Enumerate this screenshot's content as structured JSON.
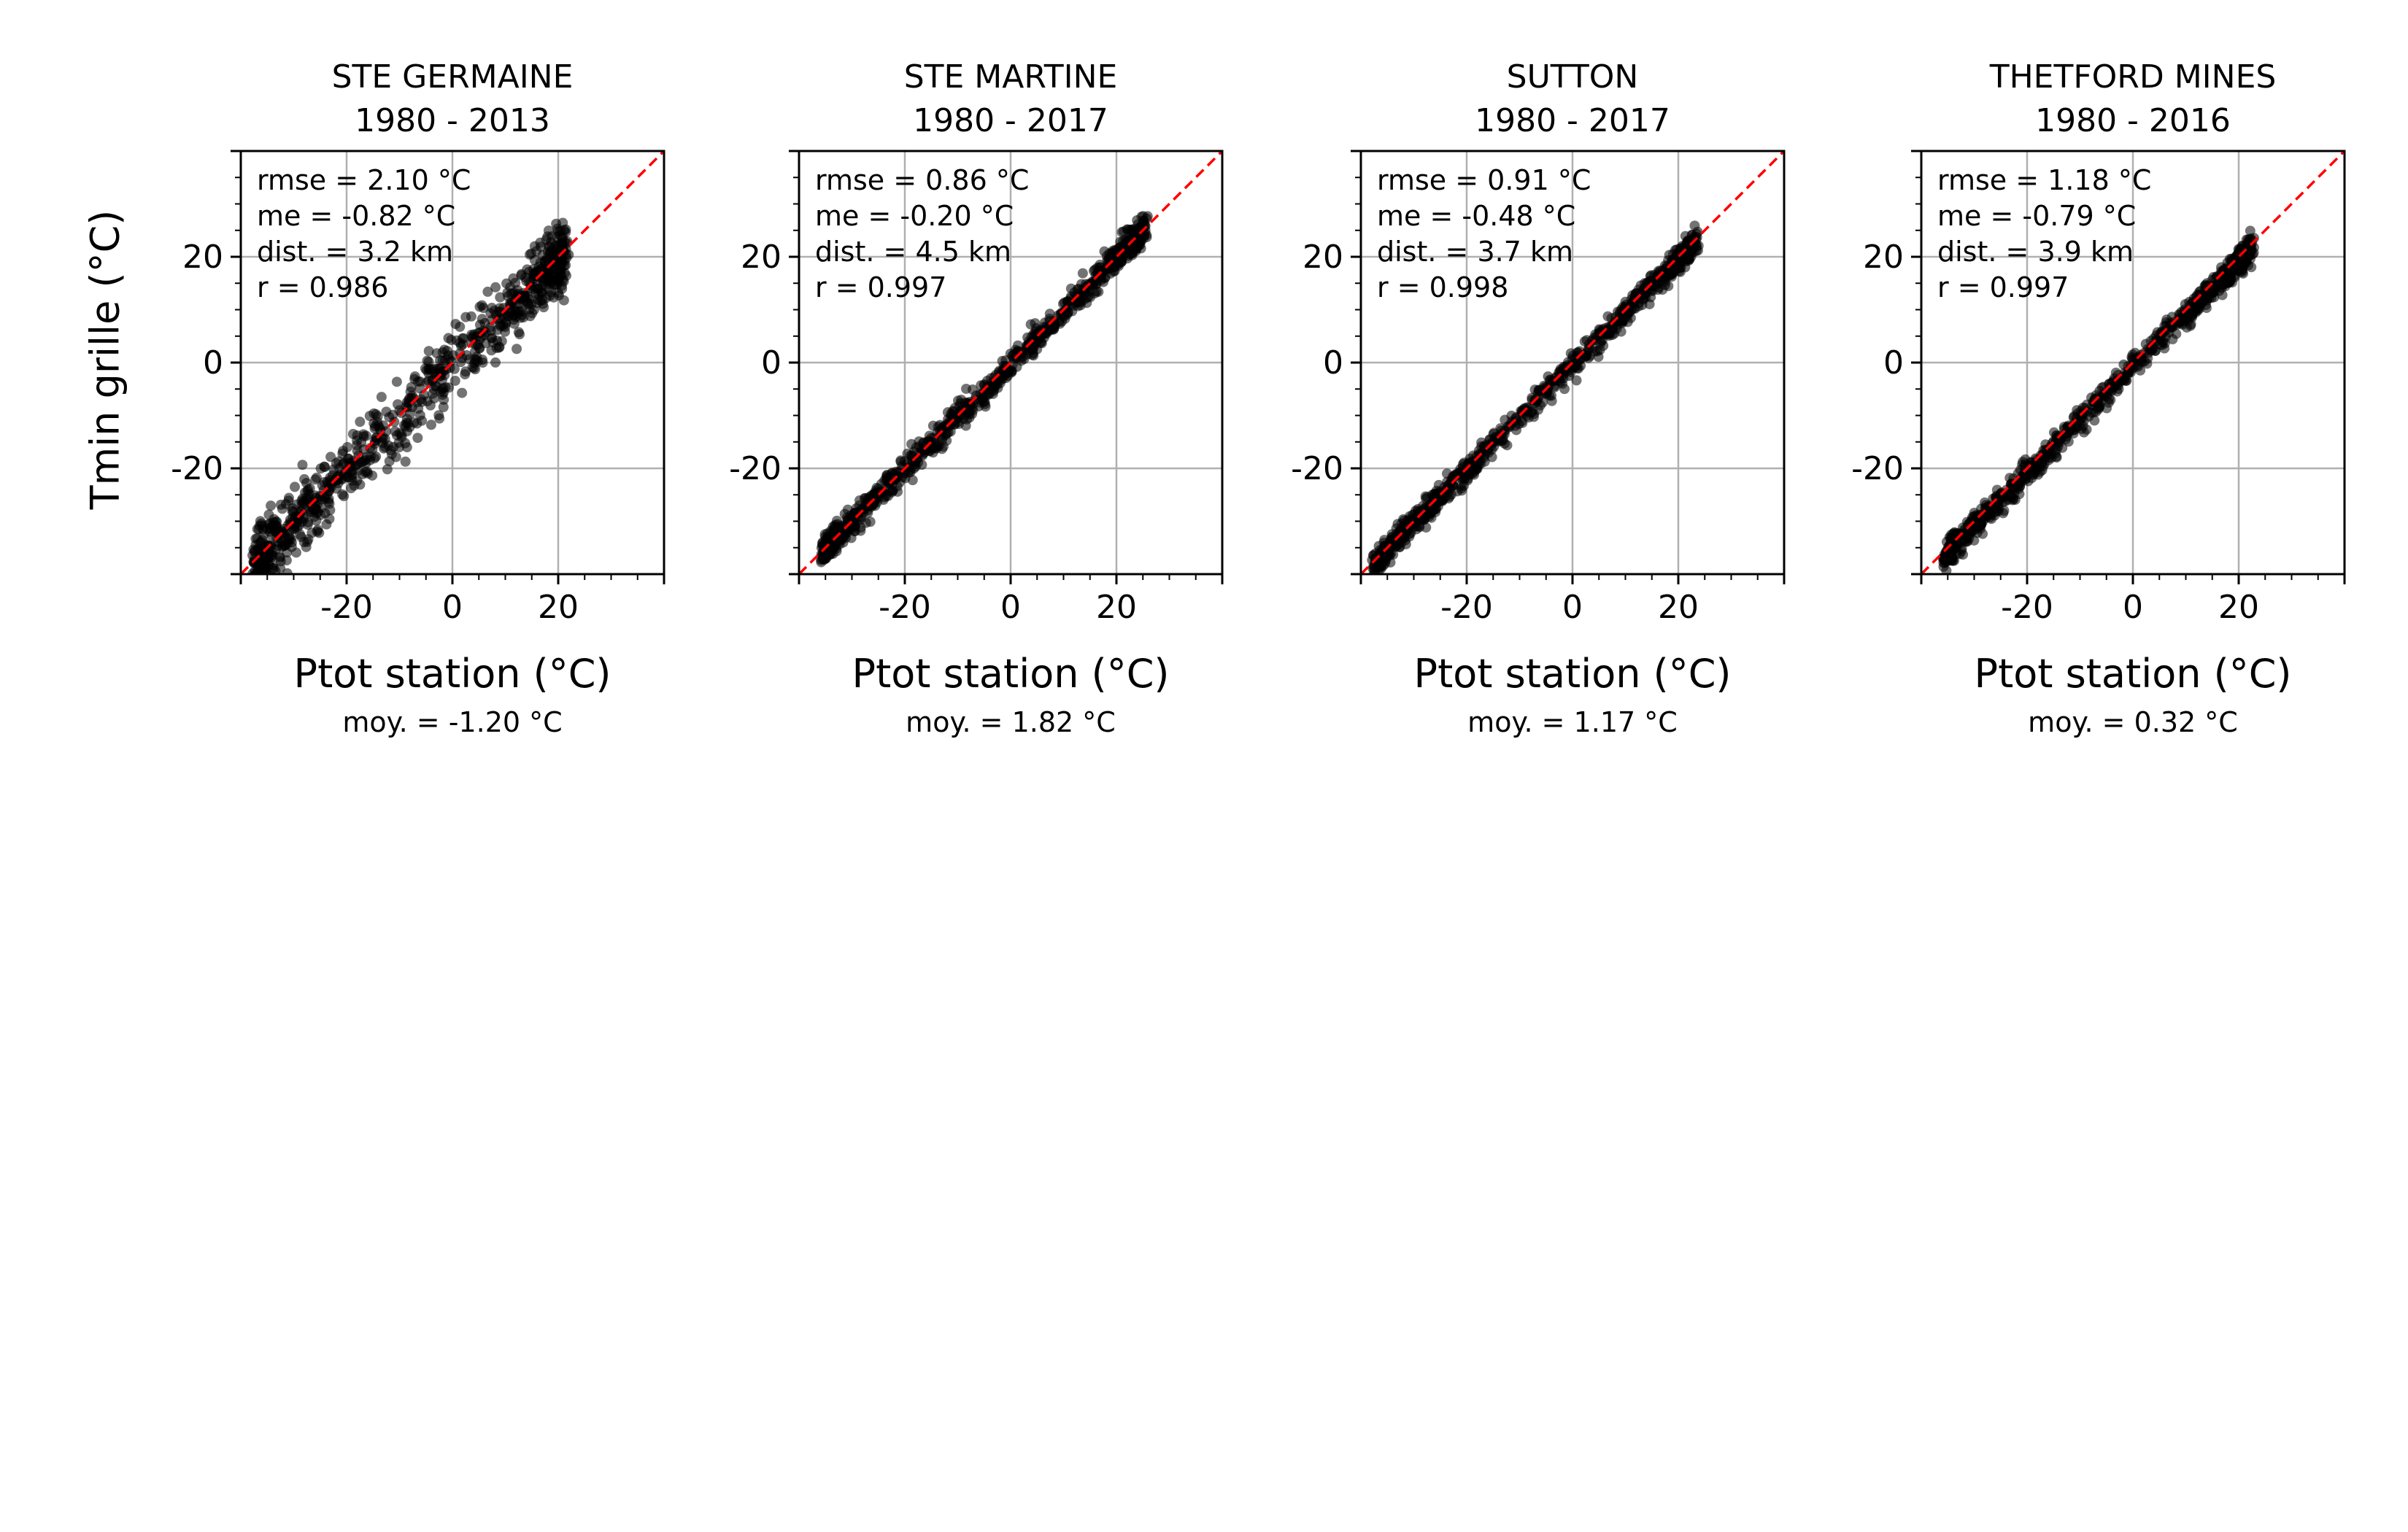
{
  "figure": {
    "ylabel": "Tmin grille (°C)"
  },
  "style": {
    "point_color": "#000000",
    "point_opacity": 0.55,
    "identity_line_color": "#ff0000",
    "grid_color": "#b0b0b0"
  },
  "chart_data": [
    {
      "type": "scatter",
      "title": "STE GERMAINE",
      "subtitle": "1980 - 2013",
      "xlabel": "Ptot station (°C)",
      "xlabel_note": "moy. = -1.20 °C",
      "stats": [
        "rmse = 2.10 °C",
        "me = -0.82 °C",
        "dist. = 3.2 km",
        "r = 0.986"
      ],
      "xlim": [
        -40,
        40
      ],
      "ylim": [
        -40,
        40
      ],
      "xticks": [
        -20,
        0,
        20
      ],
      "yticks": [
        -20,
        0,
        20
      ],
      "xtick_labels": [
        "-20",
        "0",
        "20"
      ],
      "ytick_labels": [
        "-20",
        "0",
        "20"
      ],
      "grid": true,
      "reference_line": "y = x",
      "points": {
        "x_range": [
          -38,
          22
        ],
        "spread": 3.2,
        "bias": -0.82,
        "count": 850,
        "seed": 11
      }
    },
    {
      "type": "scatter",
      "title": "STE MARTINE",
      "subtitle": "1980 - 2017",
      "xlabel": "Ptot station (°C)",
      "xlabel_note": "moy. = 1.82 °C",
      "stats": [
        "rmse = 0.86 °C",
        "me = -0.20 °C",
        "dist. = 4.5 km",
        "r = 0.997"
      ],
      "xlim": [
        -40,
        40
      ],
      "ylim": [
        -40,
        40
      ],
      "xticks": [
        -20,
        0,
        20
      ],
      "yticks": [
        -20,
        0,
        20
      ],
      "xtick_labels": [
        "-20",
        "0",
        "20"
      ],
      "ytick_labels": [
        "-20",
        "0",
        "20"
      ],
      "grid": true,
      "reference_line": "y = x",
      "points": {
        "x_range": [
          -36,
          26
        ],
        "spread": 1.4,
        "bias": -0.2,
        "count": 850,
        "seed": 23
      }
    },
    {
      "type": "scatter",
      "title": "SUTTON",
      "subtitle": "1980 - 2017",
      "xlabel": "Ptot station (°C)",
      "xlabel_note": "moy. = 1.17 °C",
      "stats": [
        "rmse = 0.91 °C",
        "me = -0.48 °C",
        "dist. = 3.7 km",
        "r = 0.998"
      ],
      "xlim": [
        -40,
        40
      ],
      "ylim": [
        -40,
        40
      ],
      "xticks": [
        -20,
        0,
        20
      ],
      "yticks": [
        -20,
        0,
        20
      ],
      "xtick_labels": [
        "-20",
        "0",
        "20"
      ],
      "ytick_labels": [
        "-20",
        "0",
        "20"
      ],
      "grid": true,
      "reference_line": "y = x",
      "points": {
        "x_range": [
          -38,
          24
        ],
        "spread": 1.2,
        "bias": -0.48,
        "count": 850,
        "seed": 37
      }
    },
    {
      "type": "scatter",
      "title": "THETFORD MINES",
      "subtitle": "1980 - 2016",
      "xlabel": "Ptot station (°C)",
      "xlabel_note": "moy. = 0.32 °C",
      "stats": [
        "rmse = 1.18 °C",
        "me = -0.79 °C",
        "dist. = 3.9 km",
        "r = 0.997"
      ],
      "xlim": [
        -40,
        40
      ],
      "ylim": [
        -40,
        40
      ],
      "xticks": [
        -20,
        0,
        20
      ],
      "yticks": [
        -20,
        0,
        20
      ],
      "xtick_labels": [
        "-20",
        "0",
        "20"
      ],
      "ytick_labels": [
        "-20",
        "0",
        "20"
      ],
      "grid": true,
      "reference_line": "y = x",
      "points": {
        "x_range": [
          -36,
          23
        ],
        "spread": 1.3,
        "bias": -0.79,
        "count": 850,
        "seed": 53
      }
    }
  ]
}
